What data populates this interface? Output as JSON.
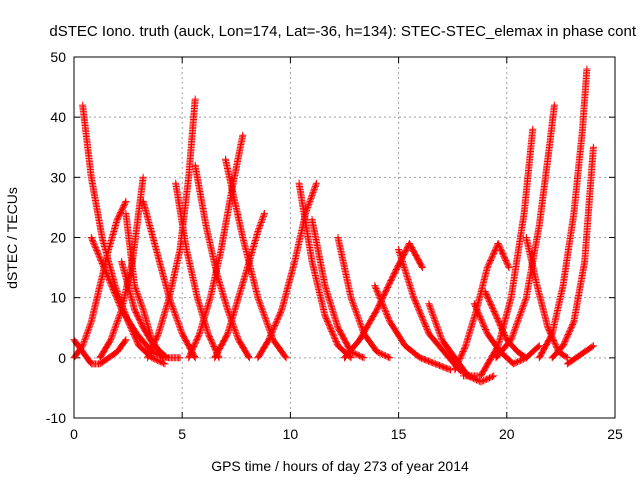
{
  "chart_data": {
    "type": "scatter",
    "title": "dSTEC Iono. truth (auck, Lon=174, Lat=-36, h=134): STEC-STEC_elemax in phase cont",
    "xlabel": "GPS time / hours of day 273 of year 2014",
    "ylabel": "dSTEC  / TECUs",
    "xlim": [
      0,
      25
    ],
    "ylim": [
      -10,
      50
    ],
    "xticks": [
      0,
      5,
      10,
      15,
      20,
      25
    ],
    "yticks": [
      -10,
      0,
      10,
      20,
      30,
      40,
      50
    ],
    "grid": true,
    "legend": "none",
    "marker": "plus",
    "color": "#ff0000",
    "series": [
      {
        "x": [
          0.0,
          0.4,
          0.8,
          1.2,
          1.6,
          2.0,
          2.4
        ],
        "y": [
          0,
          2,
          6,
          12,
          18,
          23,
          26
        ]
      },
      {
        "x": [
          0.4,
          0.8,
          1.3,
          1.9,
          2.5,
          3.0,
          3.6,
          4.2
        ],
        "y": [
          42,
          30,
          20,
          12,
          6,
          2,
          0,
          -1
        ]
      },
      {
        "x": [
          0.0,
          0.4,
          0.8,
          1.2,
          1.6,
          2.0,
          2.4
        ],
        "y": [
          3,
          1,
          -1,
          -1,
          0,
          1,
          3
        ]
      },
      {
        "x": [
          0.8,
          1.5,
          2.2,
          2.9,
          3.6,
          4.2
        ],
        "y": [
          20,
          14,
          8,
          4,
          1,
          0
        ]
      },
      {
        "x": [
          2.2,
          2.5,
          2.8,
          3.2,
          3.7,
          4.3,
          4.9
        ],
        "y": [
          16,
          12,
          8,
          5,
          2,
          0,
          0
        ]
      },
      {
        "x": [
          1.2,
          1.7,
          2.2,
          2.7,
          3.2
        ],
        "y": [
          0,
          3,
          8,
          16,
          30
        ]
      },
      {
        "x": [
          2.4,
          2.6,
          2.8,
          3.2,
          3.6,
          4.1
        ],
        "y": [
          24,
          18,
          12,
          8,
          3,
          0
        ]
      },
      {
        "x": [
          3.2,
          3.8,
          4.4,
          5.0,
          5.6
        ],
        "y": [
          26,
          18,
          10,
          4,
          0
        ]
      },
      {
        "x": [
          3.4,
          3.9,
          4.4,
          4.9,
          5.3,
          5.6
        ],
        "y": [
          0,
          4,
          10,
          18,
          30,
          43
        ]
      },
      {
        "x": [
          4.7,
          5.2,
          5.7,
          6.2,
          6.7
        ],
        "y": [
          29,
          18,
          10,
          4,
          0
        ]
      },
      {
        "x": [
          5.3,
          5.8,
          6.3,
          6.8,
          7.3,
          7.8
        ],
        "y": [
          0,
          4,
          10,
          18,
          28,
          37
        ]
      },
      {
        "x": [
          5.6,
          6.1,
          6.6,
          7.1,
          7.6,
          8.1
        ],
        "y": [
          32,
          22,
          14,
          8,
          3,
          0
        ]
      },
      {
        "x": [
          6.5,
          7.1,
          7.6,
          8.1,
          8.5,
          8.8
        ],
        "y": [
          0,
          4,
          10,
          16,
          21,
          24
        ]
      },
      {
        "x": [
          7.0,
          7.8,
          8.5,
          9.2,
          9.8
        ],
        "y": [
          33,
          20,
          10,
          3,
          0
        ]
      },
      {
        "x": [
          8.5,
          9.0,
          9.6,
          10.2,
          10.7,
          11.2
        ],
        "y": [
          0,
          3,
          8,
          16,
          24,
          29
        ]
      },
      {
        "x": [
          10.4,
          11.0,
          11.6,
          12.2,
          12.8
        ],
        "y": [
          29,
          16,
          7,
          2,
          0
        ]
      },
      {
        "x": [
          11.0,
          11.6,
          12.2,
          12.8,
          13.4
        ],
        "y": [
          23,
          12,
          5,
          1,
          0
        ]
      },
      {
        "x": [
          12.2,
          12.8,
          13.4,
          14.0,
          14.6
        ],
        "y": [
          20,
          10,
          4,
          1,
          0
        ]
      },
      {
        "x": [
          12.5,
          13.2,
          14.0,
          14.8,
          15.5,
          16.1
        ],
        "y": [
          0,
          3,
          8,
          14,
          19,
          15
        ]
      },
      {
        "x": [
          13.9,
          14.6,
          15.3,
          16.0,
          16.7,
          17.4
        ],
        "y": [
          12,
          6,
          2,
          0,
          -1,
          -2
        ]
      },
      {
        "x": [
          15.0,
          15.7,
          16.4,
          17.1,
          17.8,
          18.3
        ],
        "y": [
          18,
          10,
          4,
          1,
          -2,
          -3
        ]
      },
      {
        "x": [
          16.4,
          17.0,
          17.6,
          18.2,
          18.8,
          19.4
        ],
        "y": [
          9,
          3,
          0,
          -3,
          -4,
          -3
        ]
      },
      {
        "x": [
          17.6,
          18.1,
          18.6,
          19.1,
          19.6,
          20.1
        ],
        "y": [
          -2,
          2,
          8,
          15,
          19,
          15
        ]
      },
      {
        "x": [
          18.5,
          19.1,
          19.7,
          20.3,
          20.9,
          21.5
        ],
        "y": [
          9,
          4,
          1,
          -1,
          0,
          2
        ]
      },
      {
        "x": [
          19.0,
          19.5,
          20.0,
          20.5,
          20.9
        ],
        "y": [
          11,
          7,
          3,
          1,
          0
        ]
      },
      {
        "x": [
          18.0,
          18.8,
          19.6,
          20.2,
          20.8,
          21.2
        ],
        "y": [
          -3,
          -3,
          2,
          10,
          24,
          38
        ]
      },
      {
        "x": [
          19.5,
          20.2,
          20.9,
          21.5,
          22.0,
          22.2
        ],
        "y": [
          0,
          3,
          10,
          22,
          36,
          42
        ]
      },
      {
        "x": [
          20.9,
          21.4,
          21.9,
          22.4,
          22.8
        ],
        "y": [
          20,
          12,
          5,
          1,
          0
        ]
      },
      {
        "x": [
          21.5,
          22.1,
          22.6,
          23.1,
          23.5,
          23.7
        ],
        "y": [
          0,
          4,
          12,
          24,
          38,
          48
        ]
      },
      {
        "x": [
          22.1,
          22.6,
          23.1,
          23.6,
          24.0
        ],
        "y": [
          0,
          2,
          6,
          16,
          35
        ]
      },
      {
        "x": [
          22.8,
          23.2,
          23.6,
          24.0
        ],
        "y": [
          -1,
          0,
          1,
          2
        ]
      }
    ]
  }
}
